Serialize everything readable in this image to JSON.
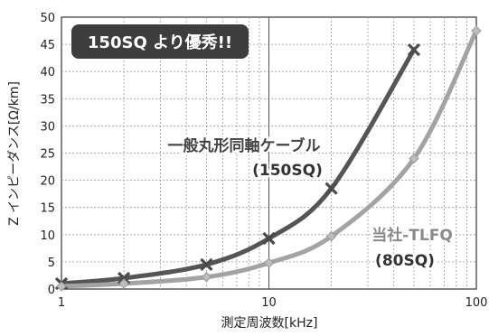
{
  "chart_data": {
    "type": "line",
    "title": "",
    "xlabel": "測定周波数[kHz]",
    "ylabel": "Z インピーダンス[Ω/km]",
    "xscale": "log",
    "xlim": [
      1,
      100
    ],
    "ylim": [
      0,
      50
    ],
    "x_ticks": [
      "1",
      "10",
      "100"
    ],
    "y_ticks": [
      "0",
      "5",
      "10",
      "15",
      "20",
      "25",
      "30",
      "35",
      "40",
      "45",
      "50"
    ],
    "grid": true,
    "series": [
      {
        "name": "一般丸形同軸ケーブル(150SQ)",
        "label_line1": "一般丸形同軸ケーブル",
        "label_line2": "(150SQ)",
        "color": "#555555",
        "marker": "x",
        "x": [
          1,
          2,
          5,
          10,
          20,
          50
        ],
        "y": [
          1,
          2,
          4.5,
          9.3,
          18.5,
          44
        ]
      },
      {
        "name": "当社-TLFQ(80SQ)",
        "label_line1": "当社-TLFQ",
        "label_line2": "(80SQ)",
        "color": "#a3a3a3",
        "marker": "diamond",
        "x": [
          1,
          2,
          5,
          10,
          20,
          50,
          100
        ],
        "y": [
          0.5,
          1,
          2.2,
          4.8,
          9.7,
          24,
          47.5
        ]
      }
    ],
    "badge": "150SQ より優秀!!"
  }
}
